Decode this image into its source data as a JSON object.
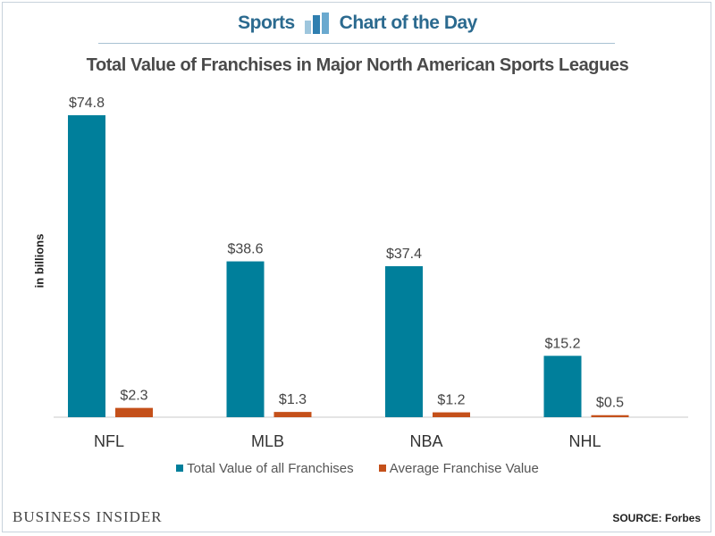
{
  "header": {
    "left": "Sports",
    "right": "Chart of the Day"
  },
  "brand": "BUSINESS INSIDER",
  "source": "SOURCE: Forbes",
  "colors": {
    "total": "#007f9b",
    "average": "#c4501a",
    "header": "#2b6a8f"
  },
  "chart_data": {
    "type": "bar",
    "title": "Total Value of Franchises in Major North American Sports Leagues",
    "xlabel": "",
    "ylabel": "in billions",
    "categories": [
      "NFL",
      "MLB",
      "NBA",
      "NHL"
    ],
    "series": [
      {
        "name": "Total Value of all Franchises",
        "values": [
          74.8,
          38.6,
          37.4,
          15.2
        ],
        "labels": [
          "$74.8",
          "$38.6",
          "$37.4",
          "$15.2"
        ]
      },
      {
        "name": "Average Franchise Value",
        "values": [
          2.3,
          1.3,
          1.2,
          0.5
        ],
        "labels": [
          "$2.3",
          "$1.3",
          "$1.2",
          "$0.5"
        ]
      }
    ],
    "ylim": [
      0,
      74.8
    ],
    "grid": false,
    "legend": "bottom"
  }
}
